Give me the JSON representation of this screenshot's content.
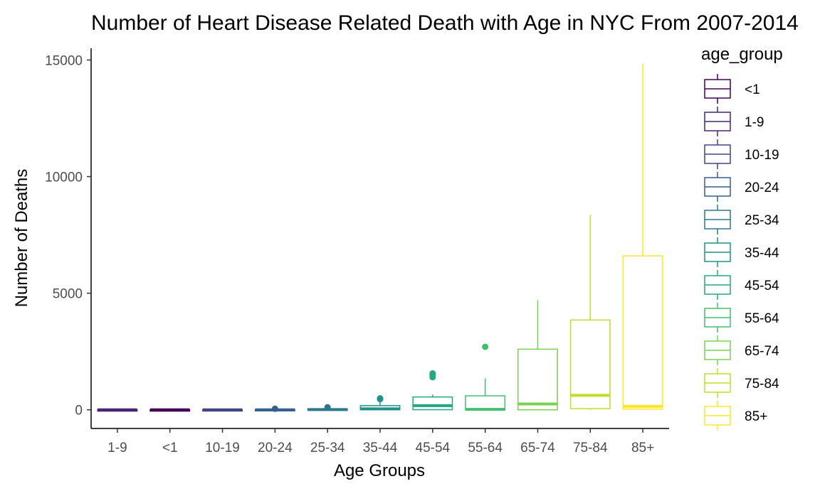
{
  "chart_data": {
    "type": "boxplot",
    "title": "Number of Heart Disease Related Death with Age in NYC From 2007-2014",
    "xlabel": "Age Groups",
    "ylabel": "Number of Deaths",
    "ylim": [
      -800,
      15500
    ],
    "yticks": [
      0,
      5000,
      10000,
      15000
    ],
    "grid": false,
    "legend_position": "right",
    "legend_title": "age_group",
    "categories": [
      "1-9",
      "<1",
      "10-19",
      "20-24",
      "25-34",
      "35-44",
      "45-54",
      "55-64",
      "65-74",
      "75-84",
      "85+"
    ],
    "series": [
      {
        "name": "1-9",
        "group": "1-9",
        "color": "#482475",
        "min": 0,
        "q1": 0,
        "median": 0,
        "q3": 5,
        "max": 10,
        "outliers": []
      },
      {
        "name": "<1",
        "group": "<1",
        "color": "#440154",
        "min": 0,
        "q1": 0,
        "median": 0,
        "q3": 5,
        "max": 12,
        "outliers": []
      },
      {
        "name": "10-19",
        "group": "10-19",
        "color": "#414487",
        "min": 0,
        "q1": 0,
        "median": 0,
        "q3": 8,
        "max": 20,
        "outliers": []
      },
      {
        "name": "20-24",
        "group": "20-24",
        "color": "#355F8D",
        "min": 0,
        "q1": 0,
        "median": 0,
        "q3": 15,
        "max": 35,
        "outliers": [
          45
        ]
      },
      {
        "name": "25-34",
        "group": "25-34",
        "color": "#2A788E",
        "min": 0,
        "q1": 0,
        "median": 10,
        "q3": 40,
        "max": 80,
        "outliers": [
          110
        ]
      },
      {
        "name": "35-44",
        "group": "35-44",
        "color": "#21918C",
        "min": 0,
        "q1": 0,
        "median": 40,
        "q3": 180,
        "max": 350,
        "outliers": [
          460,
          490
        ]
      },
      {
        "name": "45-54",
        "group": "45-54",
        "color": "#22A884",
        "min": 0,
        "q1": 5,
        "median": 180,
        "q3": 550,
        "max": 650,
        "outliers": [
          1400,
          1470,
          1520,
          1560
        ]
      },
      {
        "name": "55-64",
        "group": "55-64",
        "color": "#44BF70",
        "min": 0,
        "q1": 0,
        "median": 20,
        "q3": 600,
        "max": 1350,
        "outliers": [
          2700
        ]
      },
      {
        "name": "65-74",
        "group": "65-74",
        "color": "#7AD151",
        "min": 0,
        "q1": 0,
        "median": 250,
        "q3": 2600,
        "max": 4700,
        "outliers": []
      },
      {
        "name": "75-84",
        "group": "75-84",
        "color": "#BDDF26",
        "min": 0,
        "q1": 50,
        "median": 620,
        "q3": 3850,
        "max": 8350,
        "outliers": []
      },
      {
        "name": "85+",
        "group": "85+",
        "color": "#FDE725",
        "min": 0,
        "q1": 30,
        "median": 150,
        "q3": 6600,
        "max": 14850,
        "outliers": []
      }
    ],
    "legend_order": [
      "<1",
      "1-9",
      "10-19",
      "20-24",
      "25-34",
      "35-44",
      "45-54",
      "55-64",
      "65-74",
      "75-84",
      "85+"
    ]
  }
}
